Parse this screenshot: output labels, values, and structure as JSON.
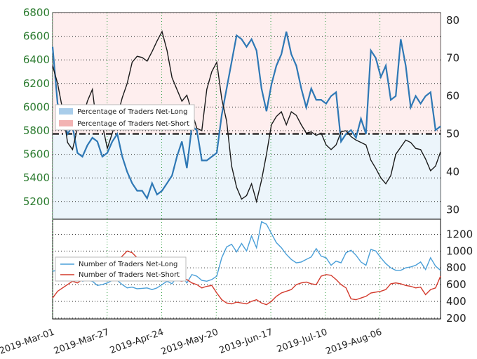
{
  "chart_data": [
    {
      "type": "line",
      "panel": "top",
      "price_axis": {
        "side": "left",
        "ylim": [
          5050,
          6800
        ],
        "ticks": [
          5200,
          5400,
          5600,
          5800,
          6000,
          6200,
          6400,
          6600,
          6800
        ],
        "color": "#2e7d32"
      },
      "pct_axis": {
        "side": "right",
        "ylim": [
          27.5,
          82
        ],
        "ticks": [
          30,
          40,
          50,
          60,
          70,
          80
        ]
      },
      "reference_line": 50,
      "grid": "dotted-green",
      "legend": {
        "placement": "middle-left",
        "entries": [
          {
            "label": "Percentage of Traders Net-Long",
            "color": "#a9cdea"
          },
          {
            "label": "Percentage of Traders Net-Short",
            "color": "#f2b3b3"
          }
        ]
      },
      "pct_long": [
        73,
        58,
        55,
        50,
        52,
        45,
        44,
        47,
        49,
        48,
        44,
        45,
        48,
        50,
        44,
        40,
        37,
        35,
        35,
        33,
        37,
        34,
        35,
        37,
        39,
        44,
        48,
        41,
        52,
        51,
        43,
        43,
        44,
        45,
        55,
        62,
        69,
        76,
        75,
        73,
        75,
        72,
        62,
        56,
        63,
        68,
        71,
        77,
        71,
        68,
        62,
        57,
        62,
        59,
        59,
        58,
        60,
        61,
        48,
        50,
        51,
        49,
        54,
        50,
        72,
        70,
        65,
        68,
        59,
        60,
        75,
        68,
        57,
        60,
        58,
        60,
        61,
        51,
        52
      ],
      "price": [
        6350,
        6200,
        5980,
        5700,
        5640,
        5820,
        5900,
        6050,
        6150,
        5800,
        5850,
        5650,
        5780,
        5920,
        6080,
        6200,
        6380,
        6430,
        6420,
        6390,
        6470,
        6560,
        6640,
        6480,
        6250,
        6150,
        6050,
        6100,
        5960,
        5820,
        5800,
        6150,
        6300,
        6380,
        6070,
        5880,
        5500,
        5320,
        5220,
        5250,
        5350,
        5200,
        5380,
        5600,
        5850,
        5920,
        5960,
        5850,
        5960,
        5930,
        5850,
        5780,
        5790,
        5760,
        5780,
        5680,
        5640,
        5680,
        5790,
        5800,
        5750,
        5720,
        5700,
        5680,
        5550,
        5480,
        5400,
        5350,
        5420,
        5600,
        5660,
        5720,
        5700,
        5650,
        5640,
        5560,
        5460,
        5500,
        5620
      ]
    },
    {
      "type": "line",
      "panel": "bottom",
      "ylim": [
        190,
        1380
      ],
      "ticks": [
        200,
        400,
        600,
        800,
        1000,
        1200
      ],
      "legend": {
        "placement": "left",
        "entries": [
          {
            "label": "Number of Traders Net-Long",
            "color": "#4a9fd8"
          },
          {
            "label": "Number of Traders Net-Short",
            "color": "#d33a2c"
          }
        ]
      },
      "series": [
        {
          "name": "Number of Traders Net-Long",
          "color": "#4a9fd8",
          "values": [
            760,
            770,
            755,
            680,
            690,
            700,
            640,
            650,
            640,
            590,
            600,
            620,
            650,
            650,
            600,
            560,
            570,
            550,
            555,
            560,
            540,
            560,
            600,
            640,
            610,
            690,
            700,
            620,
            720,
            700,
            650,
            640,
            660,
            700,
            920,
            1050,
            1080,
            990,
            1090,
            1000,
            1180,
            1040,
            1350,
            1320,
            1210,
            1100,
            1040,
            960,
            900,
            860,
            870,
            900,
            930,
            1030,
            940,
            920,
            830,
            880,
            860,
            980,
            1010,
            950,
            870,
            830,
            1020,
            1000,
            920,
            850,
            800,
            770,
            770,
            800,
            810,
            830,
            870,
            780,
            920,
            820,
            770
          ]
        },
        {
          "name": "Number of Traders Net-Short",
          "color": "#d33a2c",
          "values": [
            440,
            520,
            560,
            600,
            640,
            620,
            660,
            680,
            720,
            760,
            820,
            860,
            800,
            880,
            940,
            1000,
            980,
            920,
            900,
            860,
            820,
            800,
            760,
            720,
            680,
            650,
            640,
            660,
            620,
            600,
            560,
            580,
            590,
            500,
            420,
            380,
            370,
            390,
            380,
            370,
            400,
            420,
            380,
            360,
            400,
            460,
            500,
            520,
            540,
            600,
            620,
            630,
            610,
            600,
            700,
            720,
            710,
            660,
            600,
            560,
            430,
            420,
            440,
            460,
            500,
            510,
            520,
            540,
            610,
            620,
            610,
            590,
            580,
            560,
            570,
            480,
            540,
            560,
            700
          ]
        }
      ]
    }
  ],
  "x_axis": {
    "tick_labels": [
      "2019-Mar-01",
      "2019-Mar-27",
      "2019-Apr-24",
      "2019-May-20",
      "2019-Jun-17",
      "2019-Jul-10",
      "2019-Aug-06"
    ],
    "tick_index": [
      0,
      18,
      36,
      54,
      72,
      90,
      108
    ],
    "total_periods": 128
  }
}
